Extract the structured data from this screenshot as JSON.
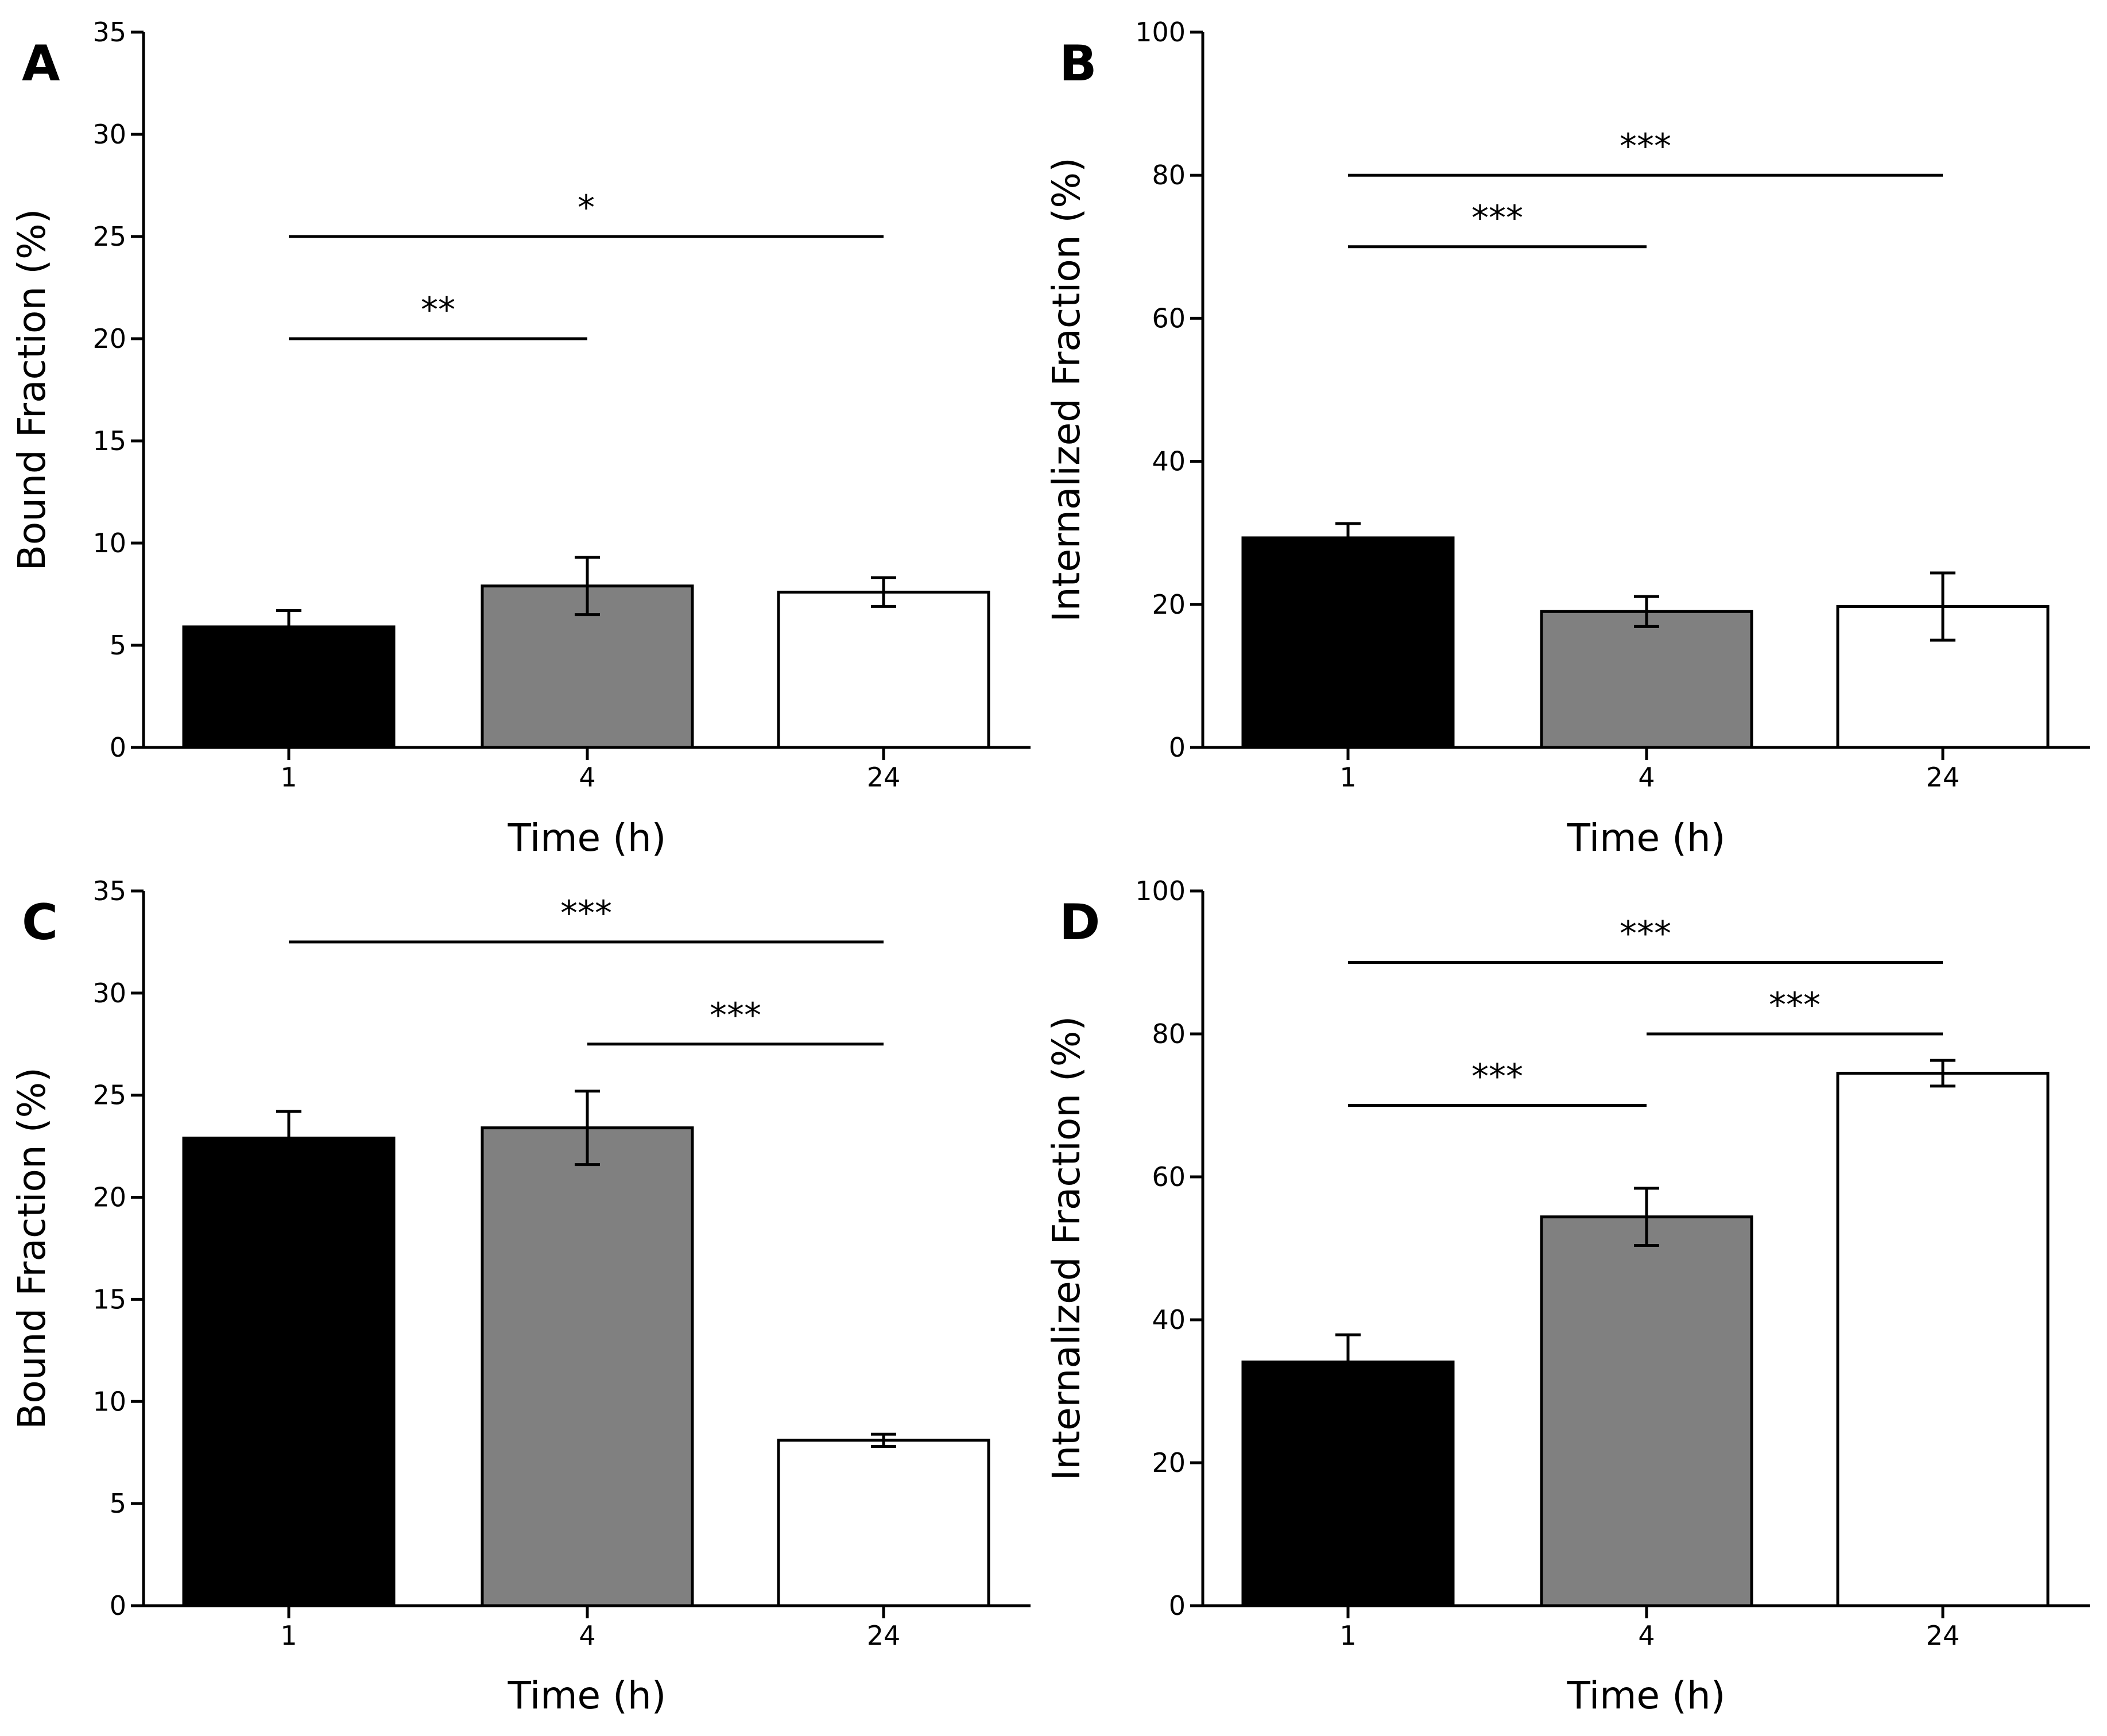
{
  "chart_data": [
    {
      "panel": "A",
      "type": "bar",
      "categories": [
        "1",
        "4",
        "24"
      ],
      "values": [
        5.9,
        7.9,
        7.6
      ],
      "errors": [
        0.8,
        1.4,
        0.7
      ],
      "colors": [
        "#000000",
        "#808080",
        "#ffffff"
      ],
      "xlabel": "Time (h)",
      "ylabel": "Bound Fraction (%)",
      "ylim": [
        0,
        35
      ],
      "yticks": [
        "0",
        "5",
        "10",
        "15",
        "20",
        "25",
        "30",
        "35"
      ],
      "significance": [
        {
          "from": 0,
          "to": 1,
          "y": 20,
          "label": "**"
        },
        {
          "from": 0,
          "to": 2,
          "y": 25,
          "label": "*"
        }
      ]
    },
    {
      "panel": "B",
      "type": "bar",
      "categories": [
        "1",
        "4",
        "24"
      ],
      "values": [
        29.3,
        19.0,
        19.7
      ],
      "errors": [
        2.0,
        2.1,
        4.7
      ],
      "colors": [
        "#000000",
        "#808080",
        "#ffffff"
      ],
      "xlabel": "Time (h)",
      "ylabel": "Internalized Fraction (%)",
      "ylim": [
        0,
        100
      ],
      "yticks": [
        "0",
        "20",
        "40",
        "60",
        "80",
        "100"
      ],
      "significance": [
        {
          "from": 0,
          "to": 1,
          "y": 70,
          "label": "***"
        },
        {
          "from": 0,
          "to": 2,
          "y": 80,
          "label": "***"
        }
      ]
    },
    {
      "panel": "C",
      "type": "bar",
      "categories": [
        "1",
        "4",
        "24"
      ],
      "values": [
        22.9,
        23.4,
        8.1
      ],
      "errors": [
        1.3,
        1.8,
        0.3
      ],
      "colors": [
        "#000000",
        "#808080",
        "#ffffff"
      ],
      "xlabel": "Time (h)",
      "ylabel": "Bound Fraction (%)",
      "ylim": [
        0,
        35
      ],
      "yticks": [
        "0",
        "5",
        "10",
        "15",
        "20",
        "25",
        "30",
        "35"
      ],
      "significance": [
        {
          "from": 1,
          "to": 2,
          "y": 27.5,
          "label": "***"
        },
        {
          "from": 0,
          "to": 2,
          "y": 32.5,
          "label": "***"
        }
      ]
    },
    {
      "panel": "D",
      "type": "bar",
      "categories": [
        "1",
        "4",
        "24"
      ],
      "values": [
        34.1,
        54.4,
        74.5
      ],
      "errors": [
        3.8,
        4.0,
        1.8
      ],
      "colors": [
        "#000000",
        "#808080",
        "#ffffff"
      ],
      "xlabel": "Time (h)",
      "ylabel": "Internalized Fraction (%)",
      "ylim": [
        0,
        100
      ],
      "yticks": [
        "0",
        "20",
        "40",
        "60",
        "80",
        "100"
      ],
      "significance": [
        {
          "from": 0,
          "to": 1,
          "y": 70,
          "label": "***"
        },
        {
          "from": 1,
          "to": 2,
          "y": 80,
          "label": "***"
        },
        {
          "from": 0,
          "to": 2,
          "y": 90,
          "label": "***"
        }
      ]
    }
  ]
}
